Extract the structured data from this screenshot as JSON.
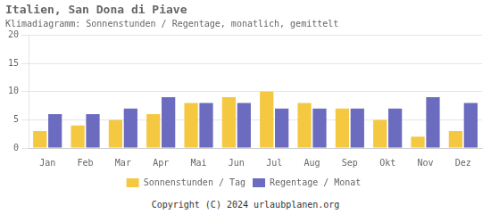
{
  "chart_data": {
    "type": "bar",
    "title": "Italien, San Dona di Piave",
    "subtitle": "Klimadiagramm: Sonnenstunden / Regentage, monatlich, gemittelt",
    "footer": "Copyright (C) 2024 urlaubplanen.org",
    "categories": [
      "Jan",
      "Feb",
      "Mar",
      "Apr",
      "Mai",
      "Jun",
      "Jul",
      "Aug",
      "Sep",
      "Okt",
      "Nov",
      "Dez"
    ],
    "series": [
      {
        "name": "Sonnenstunden / Tag",
        "color": "#F5C842",
        "values": [
          3,
          4,
          5,
          6,
          8,
          9,
          10,
          8,
          7,
          5,
          2,
          3
        ]
      },
      {
        "name": "Regentage / Monat",
        "color": "#6B6BBF",
        "values": [
          6,
          6,
          7,
          9,
          8,
          8,
          7,
          7,
          7,
          7,
          9,
          8
        ]
      }
    ],
    "ylim": [
      0,
      20
    ],
    "yticks": [
      0,
      5,
      10,
      15,
      20
    ],
    "grid": true,
    "legend": "bottom"
  }
}
